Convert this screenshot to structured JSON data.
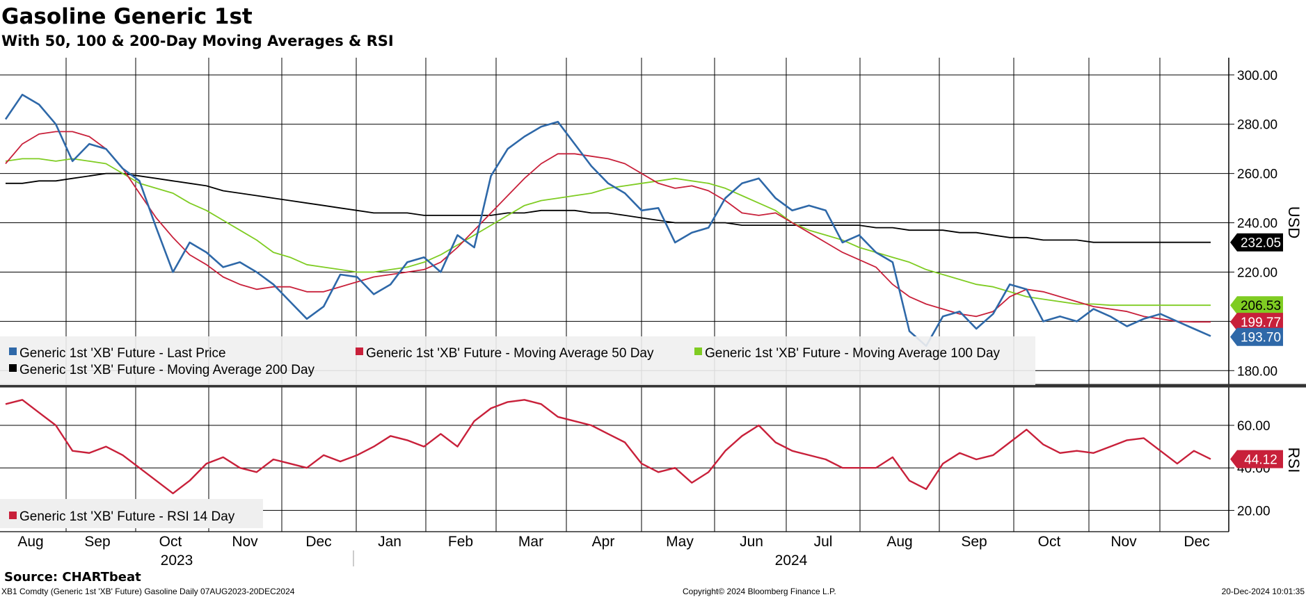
{
  "chart_data": [
    {
      "type": "line",
      "title": "Gasoline Generic 1st",
      "subtitle": "With 50, 100 & 200-Day Moving Averages & RSI",
      "ylabel": "USD",
      "ylim": [
        175,
        307
      ],
      "yticks": [
        "300.00",
        "280.00",
        "260.00",
        "240.00",
        "220.00",
        "200.00",
        "180.00"
      ],
      "x": [
        "2023-08-07",
        "2023-08-15",
        "2023-08-22",
        "2023-08-29",
        "2023-09-05",
        "2023-09-12",
        "2023-09-19",
        "2023-09-26",
        "2023-10-03",
        "2023-10-10",
        "2023-10-17",
        "2023-10-24",
        "2023-10-31",
        "2023-11-07",
        "2023-11-14",
        "2023-11-21",
        "2023-11-28",
        "2023-12-05",
        "2023-12-12",
        "2023-12-19",
        "2023-12-27",
        "2024-01-03",
        "2024-01-10",
        "2024-01-17",
        "2024-01-24",
        "2024-01-31",
        "2024-02-07",
        "2024-02-14",
        "2024-02-21",
        "2024-02-28",
        "2024-03-06",
        "2024-03-13",
        "2024-03-20",
        "2024-03-27",
        "2024-04-03",
        "2024-04-10",
        "2024-04-17",
        "2024-04-24",
        "2024-05-01",
        "2024-05-08",
        "2024-05-15",
        "2024-05-22",
        "2024-05-29",
        "2024-06-05",
        "2024-06-12",
        "2024-06-19",
        "2024-06-26",
        "2024-07-03",
        "2024-07-10",
        "2024-07-17",
        "2024-07-24",
        "2024-07-31",
        "2024-08-07",
        "2024-08-14",
        "2024-08-21",
        "2024-08-28",
        "2024-09-04",
        "2024-09-11",
        "2024-09-18",
        "2024-09-25",
        "2024-10-02",
        "2024-10-09",
        "2024-10-16",
        "2024-10-23",
        "2024-10-30",
        "2024-11-06",
        "2024-11-13",
        "2024-11-20",
        "2024-11-27",
        "2024-12-04",
        "2024-12-11",
        "2024-12-18",
        "2024-12-20"
      ],
      "series": [
        {
          "name": "Generic 1st 'XB' Future - Last Price",
          "color": "#2e68a8",
          "values": [
            282,
            292,
            288,
            280,
            265,
            272,
            270,
            262,
            257,
            238,
            220,
            232,
            228,
            222,
            224,
            220,
            215,
            208,
            201,
            206,
            219,
            218,
            211,
            215,
            224,
            226,
            220,
            235,
            230,
            259,
            270,
            275,
            279,
            281,
            272,
            263,
            256,
            252,
            245,
            246,
            232,
            236,
            238,
            250,
            256,
            258,
            250,
            245,
            247,
            245,
            232,
            235,
            228,
            224,
            196,
            190,
            202,
            204,
            197,
            203,
            215,
            213,
            200,
            202,
            200,
            205,
            202,
            198,
            201,
            203,
            200,
            197,
            194
          ]
        },
        {
          "name": "Generic 1st 'XB' Future - Moving Average 50 Day",
          "color": "#c8203a",
          "values": [
            264,
            272,
            276,
            277,
            277,
            275,
            270,
            262,
            252,
            242,
            234,
            227,
            223,
            218,
            215,
            213,
            214,
            214,
            212,
            212,
            214,
            216,
            218,
            219,
            220,
            221,
            224,
            230,
            237,
            244,
            251,
            258,
            264,
            268,
            268,
            267,
            266,
            264,
            260,
            256,
            254,
            255,
            253,
            249,
            244,
            243,
            244,
            240,
            236,
            232,
            228,
            225,
            222,
            215,
            210,
            207,
            205,
            203,
            202,
            204,
            210,
            213,
            212,
            210,
            208,
            206,
            205,
            204,
            202,
            201,
            200,
            199.77,
            199.77
          ]
        },
        {
          "name": "Generic 1st 'XB' Future - Moving Average 100 Day",
          "color": "#7fcc22",
          "values": [
            265,
            266,
            266,
            265,
            266,
            265,
            264,
            260,
            256,
            254,
            252,
            248,
            245,
            241,
            237,
            233,
            228,
            226,
            223,
            222,
            221,
            220,
            220,
            221,
            222,
            224,
            227,
            231,
            235,
            239,
            243,
            247,
            249,
            250,
            251,
            252,
            254,
            255,
            256,
            257,
            258,
            257,
            256,
            254,
            251,
            248,
            245,
            240,
            237,
            235,
            233,
            230,
            228,
            226,
            224,
            221,
            219,
            217,
            215,
            214,
            212,
            210,
            209,
            208,
            207,
            207,
            206.53,
            206.53,
            206.53,
            206.53,
            206.53,
            206.53,
            206.53
          ]
        },
        {
          "name": "Generic 1st 'XB' Future - Moving Average 200 Day",
          "color": "#000000",
          "values": [
            256,
            256,
            257,
            257,
            258,
            259,
            260,
            260,
            259,
            258,
            257,
            256,
            255,
            253,
            252,
            251,
            250,
            249,
            248,
            247,
            246,
            245,
            244,
            244,
            244,
            243,
            243,
            243,
            243,
            243,
            244,
            244,
            245,
            245,
            245,
            244,
            244,
            243,
            242,
            241,
            240,
            240,
            240,
            240,
            239,
            239,
            239,
            239,
            239,
            239,
            239,
            239,
            238,
            238,
            237,
            237,
            237,
            236,
            236,
            235,
            234,
            234,
            233,
            233,
            233,
            232.05,
            232.05,
            232.05,
            232.05,
            232.05,
            232.05,
            232.05,
            232.05
          ]
        }
      ],
      "last_values": [
        {
          "series": "Generic 1st 'XB' Future - Moving Average 200 Day",
          "label": "232.05",
          "value": 232.05,
          "color": "#000000"
        },
        {
          "series": "Generic 1st 'XB' Future - Moving Average 100 Day",
          "label": "206.53",
          "value": 206.53,
          "color": "#7fcc22"
        },
        {
          "series": "Generic 1st 'XB' Future - Moving Average 50 Day",
          "label": "199.77",
          "value": 199.77,
          "color": "#c8203a"
        },
        {
          "series": "Generic 1st 'XB' Future - Last Price",
          "label": "193.70",
          "value": 193.7,
          "color": "#2e68a8"
        }
      ],
      "legend": [
        "Generic 1st 'XB' Future - Last Price",
        "Generic 1st 'XB' Future - Moving Average 50 Day",
        "Generic 1st 'XB' Future - Moving Average 100 Day",
        "Generic 1st 'XB' Future - Moving Average 200 Day"
      ],
      "legend_position": "bottom-left"
    },
    {
      "type": "line",
      "ylabel": "RSI",
      "ylim": [
        10,
        77
      ],
      "yticks": [
        "60.00",
        "40.00",
        "20.00"
      ],
      "series": [
        {
          "name": "Generic 1st 'XB' Future - RSI 14 Day",
          "color": "#c8203a",
          "values": [
            70,
            72,
            66,
            60,
            48,
            47,
            50,
            46,
            40,
            34,
            28,
            34,
            42,
            45,
            40,
            38,
            44,
            42,
            40,
            46,
            43,
            46,
            50,
            55,
            53,
            50,
            56,
            50,
            62,
            68,
            71,
            72,
            70,
            64,
            62,
            60,
            56,
            52,
            42,
            38,
            40,
            33,
            38,
            48,
            55,
            60,
            52,
            48,
            46,
            44,
            40,
            40,
            40,
            45,
            34,
            30,
            42,
            47,
            44,
            46,
            52,
            58,
            51,
            47,
            48,
            47,
            50,
            53,
            54,
            48,
            42,
            48,
            44.12
          ]
        }
      ],
      "last_values": [
        {
          "series": "Generic 1st 'XB' Future - RSI 14 Day",
          "label": "44.12",
          "value": 44.12,
          "color": "#c8203a"
        }
      ],
      "legend": [
        "Generic 1st 'XB' Future - RSI 14 Day"
      ],
      "legend_position": "bottom-left"
    }
  ],
  "x_axis": {
    "months": [
      "Aug",
      "Sep",
      "Oct",
      "Nov",
      "Dec",
      "Jan",
      "Feb",
      "Mar",
      "Apr",
      "May",
      "Jun",
      "Jul",
      "Aug",
      "Sep",
      "Oct",
      "Nov",
      "Dec"
    ],
    "years": [
      "2023",
      "2024"
    ]
  },
  "footer": {
    "source": "Source: CHARTbeat",
    "description": "XB1 Comdty (Generic 1st 'XB' Future) Gasoline  Daily 07AUG2023-20DEC2024",
    "copyright": "Copyright© 2024 Bloomberg Finance L.P.",
    "timestamp": "20-Dec-2024 10:01:35"
  }
}
